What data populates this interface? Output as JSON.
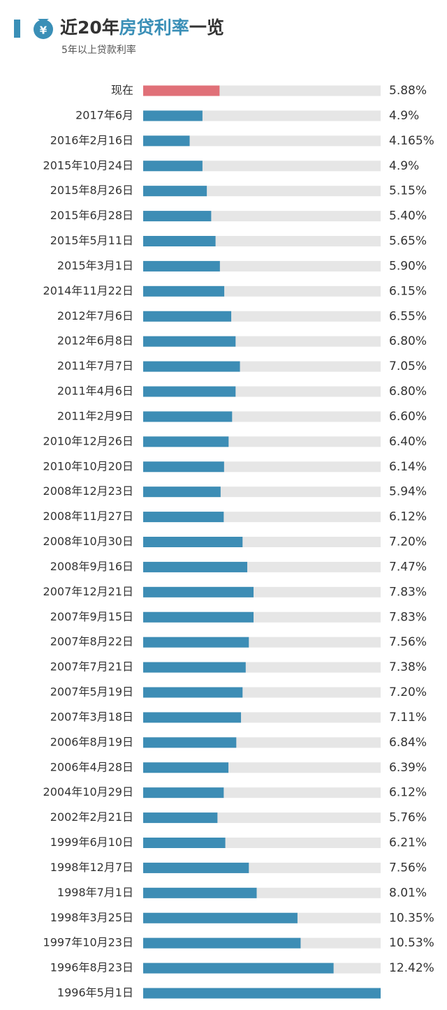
{
  "chart_data": {
    "type": "hbar",
    "title_segments": [
      {
        "text": "近20年",
        "color": "#333333"
      },
      {
        "text": "房贷利率",
        "color": "#3a8fb7"
      },
      {
        "text": "一览",
        "color": "#333333"
      }
    ],
    "subtitle": "5年以上贷款利率",
    "categories": [
      "现在",
      "2017年6月",
      "2016年2月16日",
      "2015年10月24日",
      "2015年8月26日",
      "2015年6月28日",
      "2015年5月11日",
      "2015年3月1日",
      "2014年11月22日",
      "2012年7月6日",
      "2012年6月8日",
      "2011年7月7日",
      "2011年4月6日",
      "2011年2月9日",
      "2010年12月26日",
      "2010年10月20日",
      "2008年12月23日",
      "2008年11月27日",
      "2008年10月30日",
      "2008年9月16日",
      "2007年12月21日",
      "2007年9月15日",
      "2007年8月22日",
      "2007年7月21日",
      "2007年5月19日",
      "2007年3月18日",
      "2006年8月19日",
      "2006年4月28日",
      "2004年10月29日",
      "2002年2月21日",
      "1999年6月10日",
      "1998年12月7日",
      "1998年7月1日",
      "1998年3月25日",
      "1997年10月23日",
      "1996年8月23日",
      "1996年5月1日"
    ],
    "values": [
      5.88,
      4.9,
      4.165,
      4.9,
      5.15,
      5.4,
      5.65,
      5.9,
      6.15,
      6.55,
      6.8,
      7.05,
      6.8,
      6.6,
      6.4,
      6.14,
      5.94,
      6.12,
      7.2,
      7.47,
      7.83,
      7.83,
      7.56,
      7.38,
      7.2,
      7.11,
      6.84,
      6.39,
      6.12,
      5.76,
      6.21,
      7.56,
      8.01,
      10.35,
      10.53,
      12.42,
      15.12
    ],
    "value_labels": [
      "5.88%",
      "4.9%",
      "4.165%",
      "4.9%",
      "5.15%",
      "5.40%",
      "5.65%",
      "5.90%",
      "6.15%",
      "6.55%",
      "6.80%",
      "7.05%",
      "6.80%",
      "6.60%",
      "6.40%",
      "6.14%",
      "5.94%",
      "6.12%",
      "7.20%",
      "7.47%",
      "7.83%",
      "7.83%",
      "7.56%",
      "7.38%",
      "7.20%",
      "7.11%",
      "6.84%",
      "6.39%",
      "6.12%",
      "5.76%",
      "6.21%",
      "7.56%",
      "8.01%",
      "10.35%",
      "10.53%",
      "12.42%",
      null
    ],
    "colors": [
      "#e07078",
      "#3d8db5",
      "#3d8db5",
      "#3d8db5",
      "#3d8db5",
      "#3d8db5",
      "#3d8db5",
      "#3d8db5",
      "#3d8db5",
      "#3d8db5",
      "#3d8db5",
      "#3d8db5",
      "#3d8db5",
      "#3d8db5",
      "#3d8db5",
      "#3d8db5",
      "#3d8db5",
      "#3d8db5",
      "#3d8db5",
      "#3d8db5",
      "#3d8db5",
      "#3d8db5",
      "#3d8db5",
      "#3d8db5",
      "#3d8db5",
      "#3d8db5",
      "#3d8db5",
      "#3d8db5",
      "#3d8db5",
      "#3d8db5",
      "#3d8db5",
      "#3d8db5",
      "#3d8db5",
      "#3d8db5",
      "#3d8db5",
      "#3d8db5",
      "#3d8db5"
    ],
    "track_color": "#e6e6e6",
    "xlim": [
      1.5,
      15.12
    ]
  }
}
